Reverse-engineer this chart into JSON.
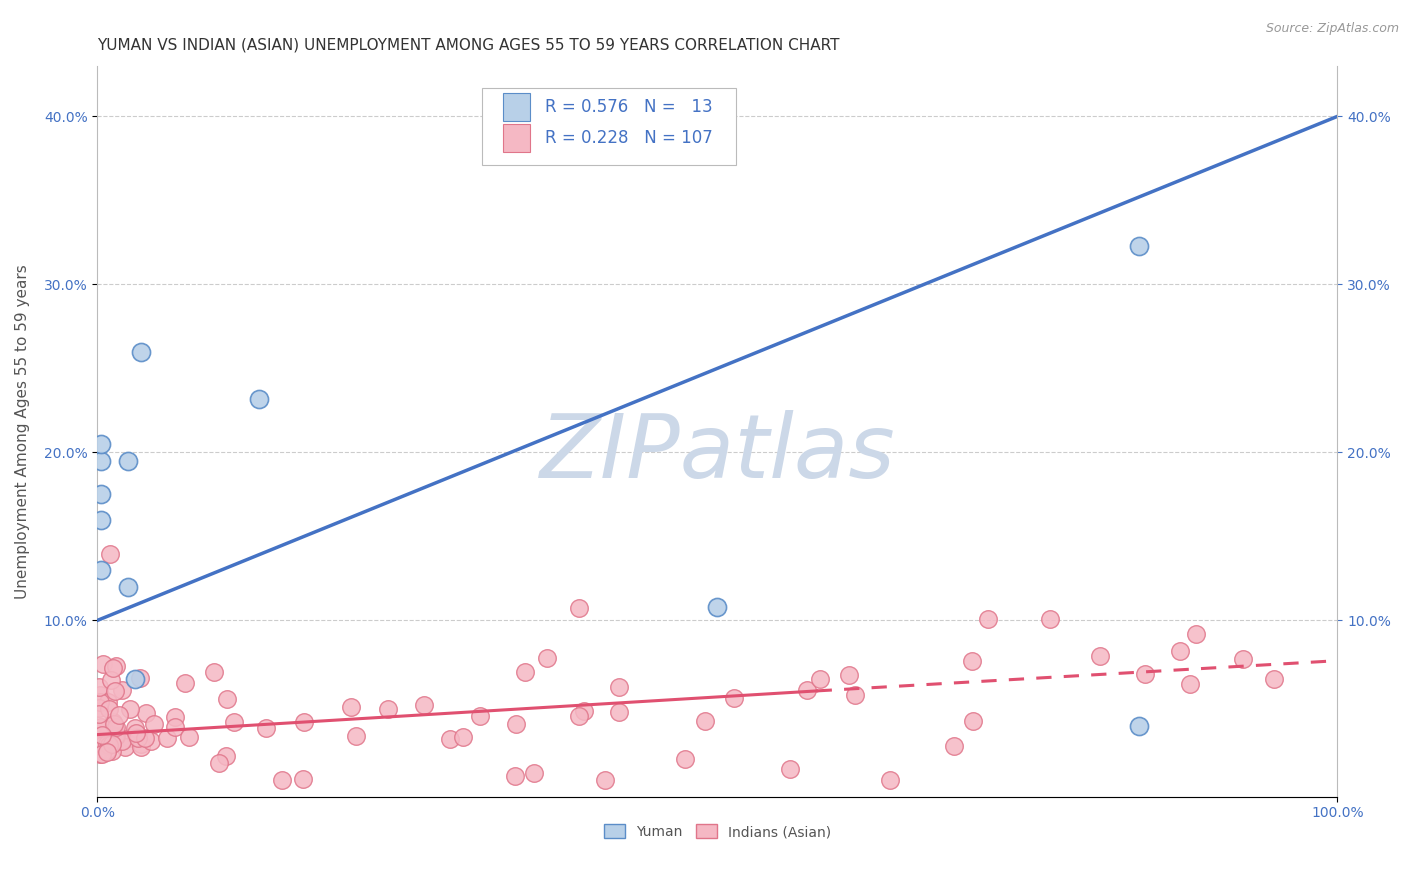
{
  "title": "YUMAN VS INDIAN (ASIAN) UNEMPLOYMENT AMONG AGES 55 TO 59 YEARS CORRELATION CHART",
  "source": "Source: ZipAtlas.com",
  "ylabel": "Unemployment Among Ages 55 to 59 years",
  "y_tick_labels": [
    "10.0%",
    "20.0%",
    "30.0%",
    "40.0%"
  ],
  "y_tick_values": [
    0.1,
    0.2,
    0.3,
    0.4
  ],
  "x_tick_labels": [
    "0.0%",
    "100.0%"
  ],
  "x_tick_values": [
    0.0,
    1.0
  ],
  "xlim": [
    0.0,
    1.0
  ],
  "ylim": [
    -0.005,
    0.43
  ],
  "color_yuman_fill": "#b8d0e8",
  "color_yuman_edge": "#5b8dc8",
  "color_yuman_line": "#4472c4",
  "color_indian_fill": "#f5b8c4",
  "color_indian_edge": "#e0758a",
  "color_indian_line": "#e05070",
  "watermark_text": "ZIPatlas",
  "watermark_color": "#ccd8e8",
  "background_color": "#ffffff",
  "grid_color": "#cccccc",
  "title_color": "#333333",
  "source_color": "#999999",
  "tick_color": "#4472c4",
  "ylabel_color": "#555555",
  "blue_line_x0": 0.0,
  "blue_line_y0": 0.1,
  "blue_line_x1": 1.0,
  "blue_line_y1": 0.4,
  "pink_line_solid_x0": 0.0,
  "pink_line_solid_y0": 0.032,
  "pink_line_solid_x1": 0.58,
  "pink_line_solid_y1": 0.058,
  "pink_line_dash_x0": 0.58,
  "pink_line_dash_y0": 0.058,
  "pink_line_dash_x1": 1.0,
  "pink_line_dash_y1": 0.076,
  "title_fontsize": 11,
  "axis_label_fontsize": 11,
  "tick_fontsize": 10,
  "legend_fontsize": 12,
  "source_fontsize": 9
}
